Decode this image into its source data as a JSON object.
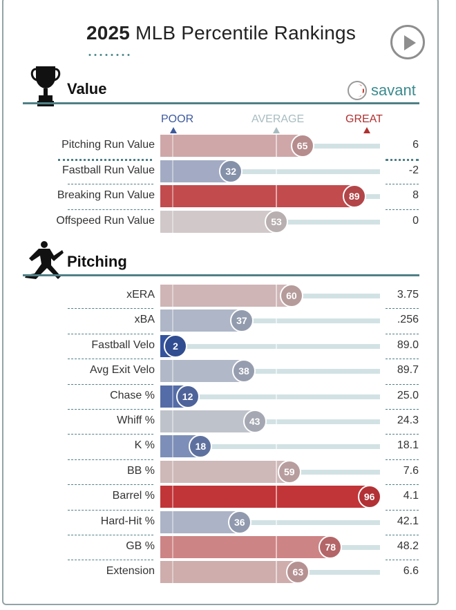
{
  "header": {
    "year": "2025",
    "title_rest": " MLB Percentile Rankings"
  },
  "brand": {
    "name": "savant"
  },
  "scale": {
    "poor": "POOR",
    "average": "AVERAGE",
    "great": "GREAT",
    "colors": {
      "poor": "#3d5a9e",
      "average": "#a8bcc0",
      "great": "#b03030"
    }
  },
  "sections": [
    {
      "title": "Value",
      "icon": "trophy-icon"
    },
    {
      "title": "Pitching",
      "icon": "pitcher-icon"
    }
  ],
  "chart_data": [
    {
      "type": "bar",
      "section": "Value",
      "xlim": [
        0,
        100
      ],
      "categories": [
        "Pitching Run Value",
        "Fastball Run Value",
        "Breaking Run Value",
        "Offspeed Run Value"
      ],
      "percentiles": [
        65,
        32,
        89,
        53
      ],
      "values": [
        "6",
        "-2",
        "8",
        "0"
      ]
    },
    {
      "type": "bar",
      "section": "Pitching",
      "xlim": [
        0,
        100
      ],
      "categories": [
        "xERA",
        "xBA",
        "Fastball Velo",
        "Avg Exit Velo",
        "Chase %",
        "Whiff %",
        "K %",
        "BB %",
        "Barrel %",
        "Hard-Hit %",
        "GB %",
        "Extension"
      ],
      "percentiles": [
        60,
        37,
        2,
        38,
        12,
        43,
        18,
        59,
        96,
        36,
        78,
        63
      ],
      "values": [
        "3.75",
        ".256",
        "89.0",
        "89.7",
        "25.0",
        "24.3",
        "18.1",
        "7.6",
        "4.1",
        "42.1",
        "48.2",
        "6.6"
      ]
    }
  ]
}
